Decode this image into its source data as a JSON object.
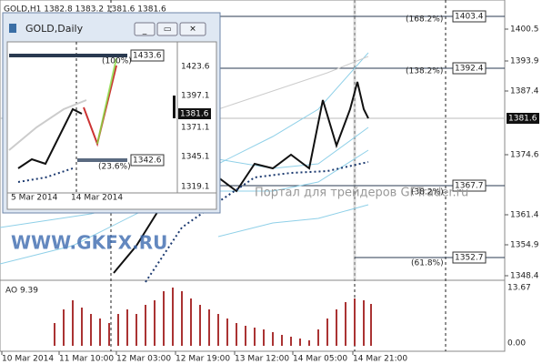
{
  "main": {
    "header": "GOLD,H1  1382.8 1383.2 1381.6 1381.6",
    "price_axis": [
      "1400.5",
      "1393.9",
      "1387.4",
      "1374.6",
      "1361.4",
      "1354.9",
      "1348.4"
    ],
    "price_boxes": [
      "1403.4",
      "1392.4",
      "1381.6",
      "1367.7",
      "1352.7"
    ],
    "fib_labels": [
      "(168.2%)",
      "(138.2%)",
      "(38.2%)",
      "(61.8%)"
    ],
    "time_axis": [
      "10 Mar 2014",
      "11 Mar 10:00",
      "12 Mar 03:00",
      "12 Mar 19:00",
      "13 Mar 12:00",
      "14 Mar 05:00",
      "14 Mar 21:00"
    ],
    "ao": {
      "label": "AO 9.39",
      "axis": [
        "13.67",
        "0.00"
      ]
    },
    "watermarks": [
      "WWW.GKFX.RU",
      "Портал для трейдеров GFTrader.ru"
    ]
  },
  "inset": {
    "title": "GOLD,Daily",
    "price_axis": [
      "1423.6",
      "1397.1",
      "1371.1",
      "1345.1",
      "1319.1"
    ],
    "price_boxes": [
      "1433.6",
      "1381.6",
      "1342.6"
    ],
    "fib_labels": [
      "(100%)",
      "(23.6%)"
    ],
    "time_axis": [
      "5 Mar 2014",
      "14 Mar 2014"
    ]
  }
}
